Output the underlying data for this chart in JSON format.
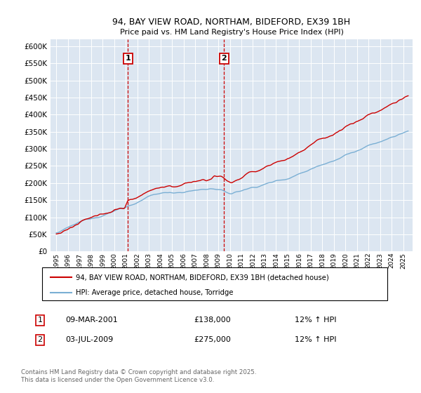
{
  "title": "94, BAY VIEW ROAD, NORTHAM, BIDEFORD, EX39 1BH",
  "subtitle": "Price paid vs. HM Land Registry's House Price Index (HPI)",
  "legend_line1": "94, BAY VIEW ROAD, NORTHAM, BIDEFORD, EX39 1BH (detached house)",
  "legend_line2": "HPI: Average price, detached house, Torridge",
  "annotation1_date": "09-MAR-2001",
  "annotation1_price": "£138,000",
  "annotation1_hpi": "12% ↑ HPI",
  "annotation2_date": "03-JUL-2009",
  "annotation2_price": "£275,000",
  "annotation2_hpi": "12% ↑ HPI",
  "footer": "Contains HM Land Registry data © Crown copyright and database right 2025.\nThis data is licensed under the Open Government Licence v3.0.",
  "red_line_color": "#cc0000",
  "blue_line_color": "#7aafd4",
  "plot_bg_color": "#dce6f1",
  "vline1_x": 2001.19,
  "vline2_x": 2009.5,
  "ylim": [
    0,
    620000
  ],
  "xlim_start": 1994.5,
  "xlim_end": 2025.8
}
